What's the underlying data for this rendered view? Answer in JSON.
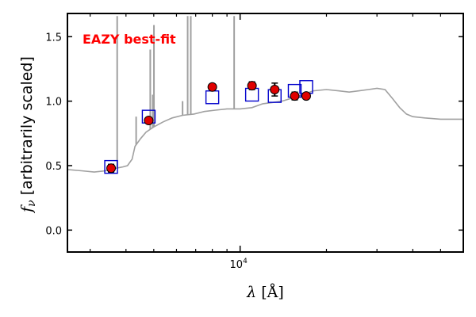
{
  "chart_data": {
    "type": "scatter",
    "xscale": "log",
    "xlim": [
      2500,
      60000
    ],
    "ylim": [
      -0.17,
      1.68
    ],
    "ylabel": "f_ν [arbitrarily scaled]",
    "ylabel_parts": {
      "var": "f",
      "sub": "ν",
      "rest": " [arbitrarily scaled]"
    },
    "xlabel": "λ [Å]",
    "xlabel_parts": {
      "var": "λ",
      "rest": " [Å]"
    },
    "yticks": [
      0.0,
      0.5,
      1.0,
      1.5
    ],
    "ytick_labels": [
      "0.0",
      "0.5",
      "1.0",
      "1.5"
    ],
    "xtick_major": [
      10000
    ],
    "xtick_major_labels": [
      {
        "base": "10",
        "exp": "4"
      }
    ],
    "xtick_minor": [
      3000,
      4000,
      5000,
      6000,
      7000,
      8000,
      9000,
      20000,
      30000,
      40000,
      50000
    ],
    "annotation": {
      "text": "EAZY best-fit",
      "color": "#ff0000"
    },
    "colors": {
      "template": "#a0a0a0",
      "model_marker": "#0000cc",
      "observed_marker": "#e00000"
    },
    "series": [
      {
        "type": "line",
        "role": "template",
        "points": [
          [
            2500,
            0.47
          ],
          [
            2800,
            0.46
          ],
          [
            3100,
            0.45
          ],
          [
            3400,
            0.46
          ],
          [
            3700,
            0.48
          ],
          [
            3900,
            0.49
          ],
          [
            4050,
            0.5
          ],
          [
            4200,
            0.55
          ],
          [
            4300,
            0.65
          ],
          [
            4500,
            0.71
          ],
          [
            4700,
            0.76
          ],
          [
            5000,
            0.8
          ],
          [
            5400,
            0.84
          ],
          [
            5800,
            0.87
          ],
          [
            6300,
            0.89
          ],
          [
            6900,
            0.9
          ],
          [
            7500,
            0.92
          ],
          [
            8200,
            0.93
          ],
          [
            9000,
            0.94
          ],
          [
            10000,
            0.94
          ],
          [
            11000,
            0.95
          ],
          [
            12000,
            0.98
          ],
          [
            13000,
            0.99
          ],
          [
            14000,
            1.0
          ],
          [
            15000,
            1.02
          ],
          [
            16500,
            1.05
          ],
          [
            18000,
            1.08
          ],
          [
            20000,
            1.09
          ],
          [
            22000,
            1.08
          ],
          [
            24000,
            1.07
          ],
          [
            26000,
            1.08
          ],
          [
            28000,
            1.09
          ],
          [
            30000,
            1.1
          ],
          [
            32000,
            1.09
          ],
          [
            34000,
            1.02
          ],
          [
            36000,
            0.95
          ],
          [
            38000,
            0.9
          ],
          [
            40000,
            0.88
          ],
          [
            44000,
            0.87
          ],
          [
            50000,
            0.86
          ],
          [
            55000,
            0.86
          ],
          [
            60000,
            0.86
          ]
        ],
        "emission_lines": [
          [
            3727,
            1.66
          ],
          [
            4861,
            1.4
          ],
          [
            5007,
            1.59
          ],
          [
            6563,
            1.66
          ],
          [
            6730,
            1.66
          ],
          [
            9532,
            1.66
          ],
          [
            4340,
            0.88
          ],
          [
            4960,
            1.05
          ],
          [
            6300,
            1.0
          ]
        ]
      },
      {
        "type": "scatter",
        "role": "model",
        "marker": "open-square",
        "points": [
          [
            3550,
            0.49
          ],
          [
            4800,
            0.88
          ],
          [
            8000,
            1.03
          ],
          [
            11000,
            1.05
          ],
          [
            13200,
            1.04
          ],
          [
            15500,
            1.08
          ],
          [
            17000,
            1.11
          ]
        ]
      },
      {
        "type": "errorbar",
        "role": "observed",
        "marker": "filled-circle",
        "points": [
          [
            3550,
            0.48,
            0.03
          ],
          [
            4800,
            0.85,
            0.02
          ],
          [
            8000,
            1.11,
            0.02
          ],
          [
            11000,
            1.12,
            0.03
          ],
          [
            13200,
            1.09,
            0.05
          ],
          [
            15500,
            1.04,
            0.03
          ],
          [
            17000,
            1.04,
            0.02
          ]
        ]
      }
    ]
  }
}
